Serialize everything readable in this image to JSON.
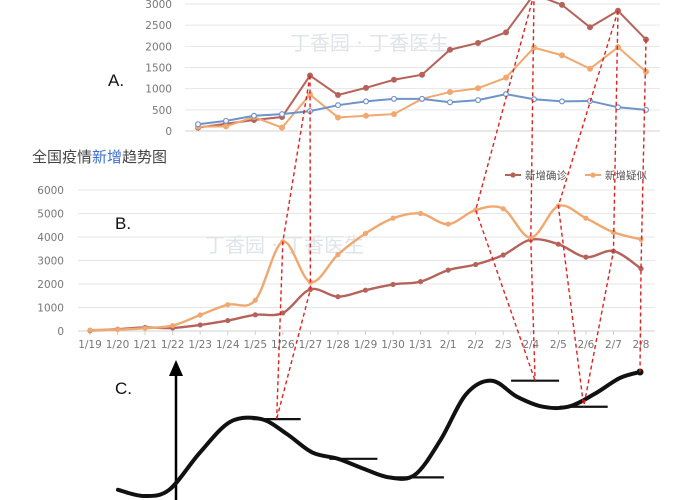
{
  "colors": {
    "confirmed": "#b5635a",
    "suspected": "#f0a870",
    "panel_a_third": "#6f93c8",
    "grid": "#e6e6e6",
    "axis": "#d0d0d0",
    "connector": "#dd2222",
    "title_accent": "#3b6fd0"
  },
  "labels": {
    "panel_a": "A.",
    "panel_b": "B.",
    "panel_c": "C."
  },
  "watermark": "丁香园 · 丁香医生",
  "chart_data": [
    {
      "id": "A",
      "type": "line",
      "title": "",
      "xlabel": "",
      "ylabel": "",
      "ylim": [
        0,
        3000
      ],
      "yticks": [
        0,
        500,
        1000,
        1500,
        2000,
        2500,
        3000
      ],
      "grid": true,
      "legend": "none",
      "series": [
        {
          "color_key": "confirmed",
          "values": [
            80,
            170,
            260,
            330,
            1310,
            850,
            1020,
            1210,
            1330,
            1920,
            2080,
            2330,
            3230,
            2980,
            2450,
            2840,
            2160
          ]
        },
        {
          "color_key": "suspected",
          "values": [
            100,
            110,
            330,
            80,
            860,
            320,
            360,
            400,
            760,
            920,
            1010,
            1260,
            1970,
            1790,
            1470,
            1980,
            1400
          ]
        },
        {
          "color_key": "panel_a_third",
          "values": [
            160,
            240,
            360,
            400,
            470,
            610,
            700,
            760,
            760,
            680,
            730,
            870,
            750,
            700,
            710,
            560,
            500
          ]
        }
      ]
    },
    {
      "id": "B",
      "type": "line",
      "title_before": "全国疫情",
      "title_accent": "新增",
      "title_after": "趋势图",
      "xlabel": "",
      "ylabel": "",
      "categories": [
        "1/19",
        "1/20",
        "1/21",
        "1/22",
        "1/23",
        "1/24",
        "1/25",
        "1/26",
        "1/27",
        "1/28",
        "1/29",
        "1/30",
        "1/31",
        "2/1",
        "2/2",
        "2/3",
        "2/4",
        "2/5",
        "2/6",
        "2/7",
        "2/8"
      ],
      "ylim": [
        0,
        6000
      ],
      "yticks": [
        0,
        1000,
        2000,
        3000,
        4000,
        5000,
        6000
      ],
      "grid": true,
      "legend": "top-right",
      "series": [
        {
          "name": "新增确诊",
          "color_key": "confirmed",
          "values": [
            17,
            77,
            149,
            131,
            259,
            444,
            688,
            769,
            1771,
            1459,
            1737,
            1982,
            2102,
            2590,
            2829,
            3235,
            3887,
            3694,
            3143,
            3399,
            2656
          ]
        },
        {
          "name": "新增疑似",
          "color_key": "suspected",
          "values": [
            40,
            60,
            120,
            230,
            680,
            1120,
            1310,
            3800,
            2080,
            3250,
            4150,
            4800,
            5000,
            4550,
            5150,
            5200,
            3970,
            5320,
            4800,
            4200,
            3900
          ]
        }
      ]
    },
    {
      "id": "C",
      "type": "line",
      "title": "",
      "xlabel": "",
      "ylabel": "",
      "description_free": true,
      "x": [
        0.0,
        0.5,
        1.0,
        1.6,
        2.2,
        2.8,
        3.3,
        3.8,
        4.3,
        4.8,
        5.3,
        5.8,
        6.3,
        6.8,
        7.3,
        7.8,
        8.3,
        8.8,
        9.3,
        9.8,
        10.2
      ],
      "values": [
        0.05,
        0.0,
        0.05,
        0.35,
        0.6,
        0.62,
        0.5,
        0.35,
        0.3,
        0.22,
        0.15,
        0.17,
        0.45,
        0.82,
        0.93,
        0.8,
        0.72,
        0.72,
        0.82,
        0.95,
        1.0
      ],
      "markers": [
        {
          "x": 3.1,
          "y": 0.62
        },
        {
          "x": 4.6,
          "y": 0.3
        },
        {
          "x": 5.9,
          "y": 0.15
        },
        {
          "x": 8.15,
          "y": 0.93
        },
        {
          "x": 9.1,
          "y": 0.72
        }
      ]
    }
  ]
}
